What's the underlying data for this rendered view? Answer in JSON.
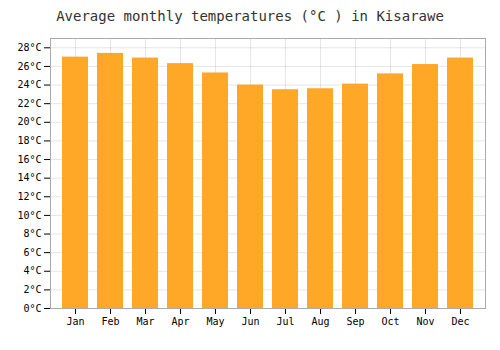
{
  "chart_data": {
    "type": "bar",
    "title": "Average monthly temperatures (°C ) in Kisarawe",
    "categories": [
      "Jan",
      "Feb",
      "Mar",
      "Apr",
      "May",
      "Jun",
      "Jul",
      "Aug",
      "Sep",
      "Oct",
      "Nov",
      "Dec"
    ],
    "values": [
      27.0,
      27.4,
      26.9,
      26.3,
      25.3,
      24.0,
      23.5,
      23.6,
      24.1,
      25.2,
      26.2,
      26.9
    ],
    "color": "#FFA726",
    "ylim": [
      0,
      29
    ],
    "yticks": [
      {
        "value": 0,
        "label": "0°C"
      },
      {
        "value": 2,
        "label": "2°C"
      },
      {
        "value": 4,
        "label": "4°C"
      },
      {
        "value": 6,
        "label": "6°C"
      },
      {
        "value": 8,
        "label": "8°C"
      },
      {
        "value": 10,
        "label": "10°C"
      },
      {
        "value": 12,
        "label": "12°C"
      },
      {
        "value": 14,
        "label": "14°C"
      },
      {
        "value": 16,
        "label": "16°C"
      },
      {
        "value": 18,
        "label": "18°C"
      },
      {
        "value": 20,
        "label": "20°C"
      },
      {
        "value": 22,
        "label": "22°C"
      },
      {
        "value": 24,
        "label": "24°C"
      },
      {
        "value": 26,
        "label": "26°C"
      },
      {
        "value": 28,
        "label": "28°C"
      }
    ],
    "grid": true
  }
}
